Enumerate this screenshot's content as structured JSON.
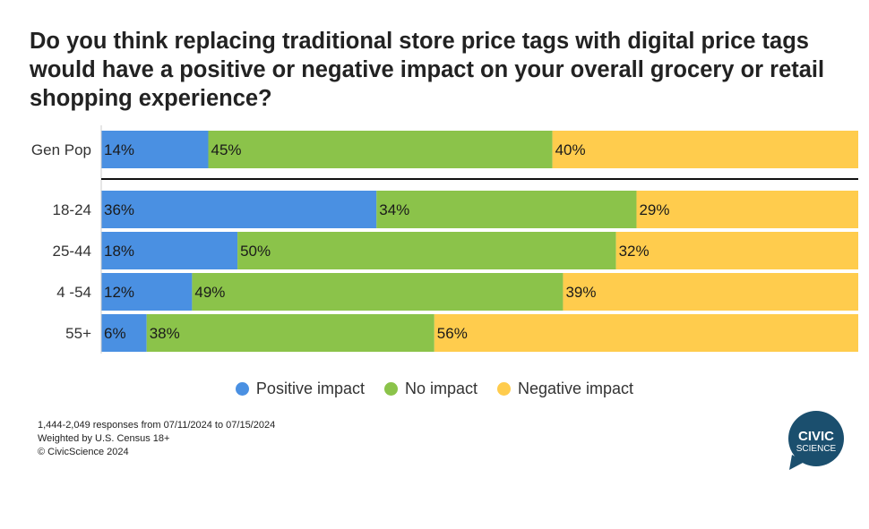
{
  "chart_data": {
    "type": "bar",
    "orientation": "horizontal",
    "stacked": true,
    "title": "Do you think replacing traditional store price tags with digital price tags would have a positive or negative impact on your overall grocery or retail shopping experience?",
    "categories": [
      "Gen Pop",
      "18-24",
      "25-44",
      "4 -54",
      "55+"
    ],
    "series": [
      {
        "name": "Positive impact",
        "color": "#4A90E2",
        "values": [
          14,
          36,
          18,
          12,
          6
        ],
        "labels": [
          "14%",
          "36%",
          "18%",
          "12%",
          "6%"
        ]
      },
      {
        "name": "No impact",
        "color": "#8BC34A",
        "values": [
          45,
          34,
          50,
          49,
          38
        ],
        "labels": [
          "45%",
          "34%",
          "50%",
          "49%",
          "38%"
        ]
      },
      {
        "name": "Negative impact",
        "color": "#FFCC4D",
        "values": [
          40,
          29,
          32,
          39,
          56
        ],
        "labels": [
          "40%",
          "29%",
          "32%",
          "39%",
          "56%"
        ]
      }
    ],
    "xlim": [
      0,
      100
    ],
    "legend_position": "bottom",
    "grid": false
  },
  "footer": {
    "line1": "1,444-2,049 responses from 07/11/2024 to 07/15/2024",
    "line2": "Weighted by U.S. Census 18+",
    "line3": "© CivicScience 2024"
  },
  "logo": {
    "line1": "CIVIC",
    "line2": "SCIENCE",
    "color": "#1B4F6E",
    "icon": "speech-bubble-logo-icon"
  }
}
